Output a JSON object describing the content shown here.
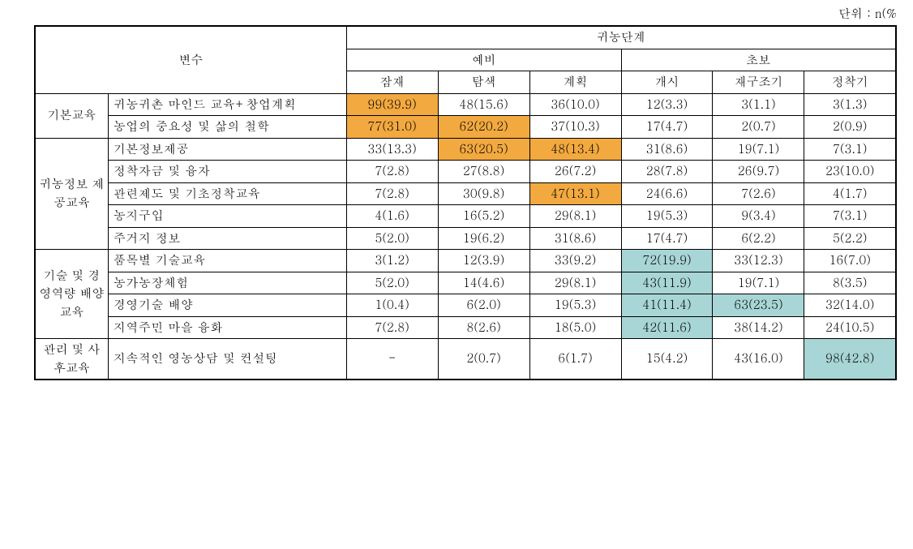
{
  "unit_label": "단위  :  n(%",
  "colors": {
    "highlight_orange": "#f2a940",
    "highlight_blue": "#a8d5d5",
    "border": "#000000",
    "background": "#ffffff",
    "text": "#000000"
  },
  "typography": {
    "font_family": "Batang, Malgun Gothic, serif",
    "font_size_pt": 11
  },
  "header": {
    "var_label": "변수",
    "stage_label": "귀농단계",
    "sub_prep": "예비",
    "sub_begin": "초보",
    "cols": [
      "잠재",
      "탐색",
      "계획",
      "개시",
      "재구조기",
      "정착기"
    ]
  },
  "groups": [
    {
      "name": "기본교육",
      "rows": [
        {
          "label": "귀농귀촌  마인드  교육+창업계획",
          "cells": [
            {
              "v": "99(39.9)",
              "hl": "orange"
            },
            {
              "v": "48(15.6)"
            },
            {
              "v": "36(10.0)"
            },
            {
              "v": "12(3.3)"
            },
            {
              "v": "3(1.1)"
            },
            {
              "v": "3(1.3)"
            }
          ]
        },
        {
          "label": "농업의 중요성 및 삶의 철학",
          "cells": [
            {
              "v": "77(31.0)",
              "hl": "orange"
            },
            {
              "v": "62(20.2)",
              "hl": "orange"
            },
            {
              "v": "37(10.3)"
            },
            {
              "v": "17(4.7)"
            },
            {
              "v": "2(0.7)"
            },
            {
              "v": "2(0.9)"
            }
          ]
        }
      ]
    },
    {
      "name": "귀농정보 제공교육",
      "rows": [
        {
          "label": "기본정보제공",
          "cells": [
            {
              "v": "33(13.3)"
            },
            {
              "v": "63(20.5)",
              "hl": "orange"
            },
            {
              "v": "48(13.4)",
              "hl": "orange"
            },
            {
              "v": "31(8.6)"
            },
            {
              "v": "19(7.1)"
            },
            {
              "v": "7(3.1)"
            }
          ]
        },
        {
          "label": "정착자금 및 융자",
          "cells": [
            {
              "v": "7(2.8)"
            },
            {
              "v": "27(8.8)"
            },
            {
              "v": "26(7.2)"
            },
            {
              "v": "28(7.8)"
            },
            {
              "v": "26(9.7)"
            },
            {
              "v": "23(10.0)"
            }
          ]
        },
        {
          "label": "관련제도 및 기초정착교육",
          "cells": [
            {
              "v": "7(2.8)"
            },
            {
              "v": "30(9.8)"
            },
            {
              "v": "47(13.1)",
              "hl": "orange"
            },
            {
              "v": "24(6.6)"
            },
            {
              "v": "7(2.6)"
            },
            {
              "v": "4(1.7)"
            }
          ]
        },
        {
          "label": "농지구입",
          "cells": [
            {
              "v": "4(1.6)"
            },
            {
              "v": "16(5.2)"
            },
            {
              "v": "29(8.1)"
            },
            {
              "v": "19(5.3)"
            },
            {
              "v": "9(3.4)"
            },
            {
              "v": "7(3.1)"
            }
          ]
        },
        {
          "label": "주거지 정보",
          "cells": [
            {
              "v": "5(2.0)"
            },
            {
              "v": "19(6.2)"
            },
            {
              "v": "31(8.6)"
            },
            {
              "v": "17(4.7)"
            },
            {
              "v": "6(2.2)"
            },
            {
              "v": "5(2.2)"
            }
          ]
        }
      ]
    },
    {
      "name": "기술 및 경영역량 배양 교육",
      "rows": [
        {
          "label": "품목별 기술교육",
          "cells": [
            {
              "v": "3(1.2)"
            },
            {
              "v": "12(3.9)"
            },
            {
              "v": "33(9.2)"
            },
            {
              "v": "72(19.9)",
              "hl": "blue"
            },
            {
              "v": "33(12.3)"
            },
            {
              "v": "16(7.0)"
            }
          ]
        },
        {
          "label": "농가농장체험",
          "cells": [
            {
              "v": "5(2.0)"
            },
            {
              "v": "14(4.6)"
            },
            {
              "v": "29(8.1)"
            },
            {
              "v": "43(11.9)",
              "hl": "blue"
            },
            {
              "v": "19(7.1)"
            },
            {
              "v": "8(3.5)"
            }
          ]
        },
        {
          "label": "경영기술 배양",
          "cells": [
            {
              "v": "1(0.4)"
            },
            {
              "v": "6(2.0)"
            },
            {
              "v": "19(5.3)"
            },
            {
              "v": "41(11.4)",
              "hl": "blue"
            },
            {
              "v": "63(23.5)",
              "hl": "blue"
            },
            {
              "v": "32(14.0)"
            }
          ]
        },
        {
          "label": "지역주민 마을 융화",
          "cells": [
            {
              "v": "7(2.8)"
            },
            {
              "v": "8(2.6)"
            },
            {
              "v": "18(5.0)"
            },
            {
              "v": "42(11.6)",
              "hl": "blue"
            },
            {
              "v": "38(14.2)"
            },
            {
              "v": "24(10.5)"
            }
          ]
        }
      ]
    },
    {
      "name": "관리 및 사후교육",
      "rows": [
        {
          "label": "지속적인 영농상담 및 컨설팅",
          "cells": [
            {
              "v": "-"
            },
            {
              "v": "2(0.7)"
            },
            {
              "v": "6(1.7)"
            },
            {
              "v": "15(4.2)"
            },
            {
              "v": "43(16.0)"
            },
            {
              "v": "98(42.8)",
              "hl": "blue"
            }
          ]
        }
      ]
    }
  ]
}
